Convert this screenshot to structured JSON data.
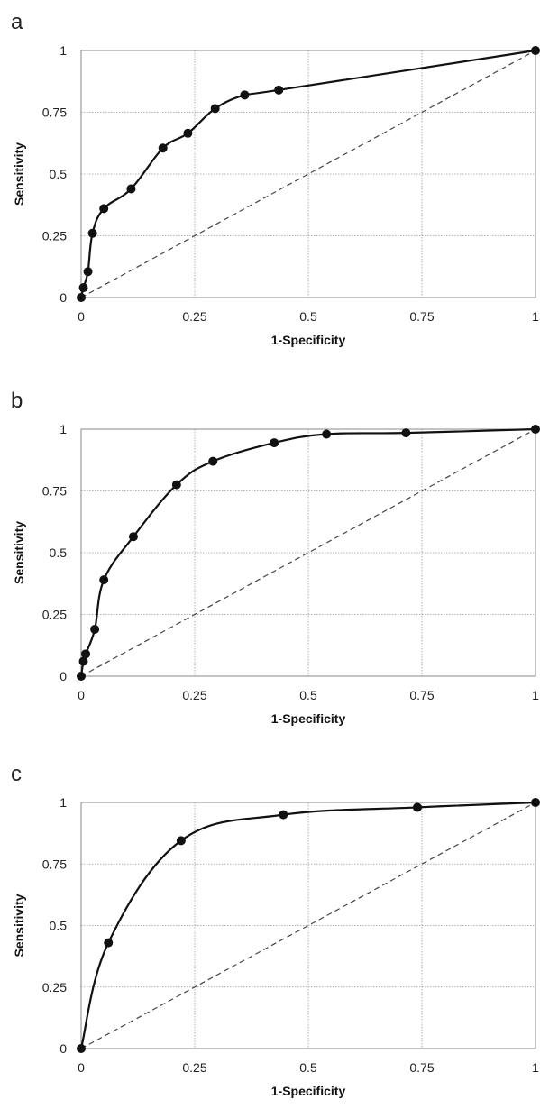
{
  "chart_data": [
    {
      "panel_label": "a",
      "type": "line",
      "xlabel": "1-Specificity",
      "ylabel": "Sensitivity",
      "xlim": [
        0,
        1
      ],
      "ylim": [
        0,
        1
      ],
      "xticks": [
        "0",
        "0.25",
        "0.5",
        "0.75",
        "1"
      ],
      "yticks": [
        "0",
        "0.25",
        "0.5",
        "0.75",
        "1"
      ],
      "grid": true,
      "reference_line": [
        [
          0,
          0
        ],
        [
          1,
          1
        ]
      ],
      "points": [
        [
          0,
          0
        ],
        [
          0.005,
          0.04
        ],
        [
          0.015,
          0.105
        ],
        [
          0.025,
          0.26
        ],
        [
          0.05,
          0.36
        ],
        [
          0.11,
          0.44
        ],
        [
          0.18,
          0.605
        ],
        [
          0.235,
          0.665
        ],
        [
          0.295,
          0.765
        ],
        [
          0.36,
          0.82
        ],
        [
          0.435,
          0.84
        ],
        [
          1,
          1
        ]
      ]
    },
    {
      "panel_label": "b",
      "type": "line",
      "xlabel": "1-Specificity",
      "ylabel": "Sensitivity",
      "xlim": [
        0,
        1
      ],
      "ylim": [
        0,
        1
      ],
      "xticks": [
        "0",
        "0.25",
        "0.5",
        "0.75",
        "1"
      ],
      "yticks": [
        "0",
        "0.25",
        "0.5",
        "0.75",
        "1"
      ],
      "grid": true,
      "reference_line": [
        [
          0,
          0
        ],
        [
          1,
          1
        ]
      ],
      "points": [
        [
          0,
          0
        ],
        [
          0.005,
          0.06
        ],
        [
          0.01,
          0.09
        ],
        [
          0.03,
          0.19
        ],
        [
          0.05,
          0.39
        ],
        [
          0.115,
          0.565
        ],
        [
          0.21,
          0.775
        ],
        [
          0.29,
          0.87
        ],
        [
          0.425,
          0.945
        ],
        [
          0.54,
          0.98
        ],
        [
          0.715,
          0.985
        ],
        [
          1,
          1
        ]
      ]
    },
    {
      "panel_label": "c",
      "type": "line",
      "xlabel": "1-Specificity",
      "ylabel": "Sensitivity",
      "xlim": [
        0,
        1
      ],
      "ylim": [
        0,
        1
      ],
      "xticks": [
        "0",
        "0.25",
        "0.5",
        "0.75",
        "1"
      ],
      "yticks": [
        "0",
        "0.25",
        "0.5",
        "0.75",
        "1"
      ],
      "grid": true,
      "reference_line": [
        [
          0,
          0
        ],
        [
          1,
          1
        ]
      ],
      "points": [
        [
          0,
          0
        ],
        [
          0.06,
          0.43
        ],
        [
          0.22,
          0.845
        ],
        [
          0.445,
          0.95
        ],
        [
          0.74,
          0.98
        ],
        [
          1,
          1
        ]
      ]
    }
  ]
}
